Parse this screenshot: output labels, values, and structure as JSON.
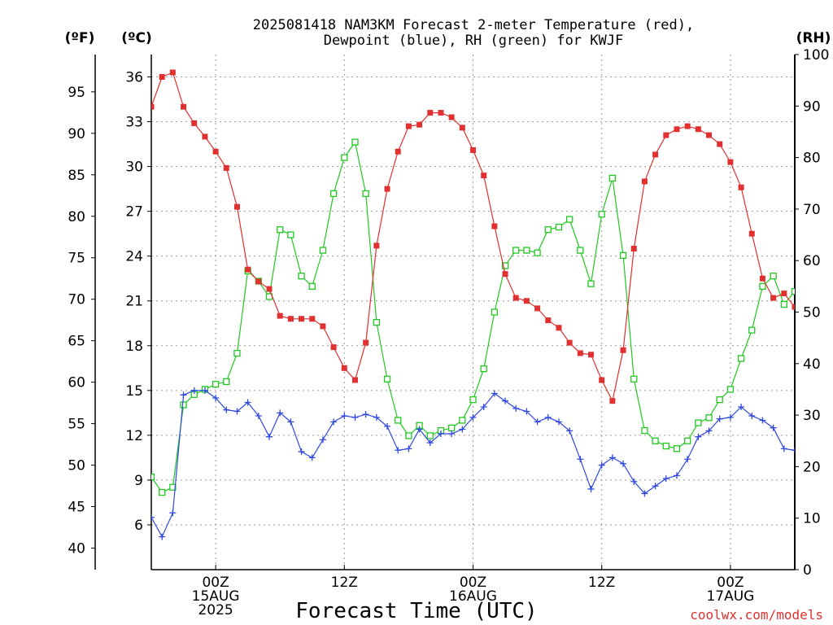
{
  "chart_data": {
    "type": "line",
    "title_line1": "2025081418 NAM3KM Forecast 2-meter Temperature (red),",
    "title_line2": "Dewpoint (blue), RH (green) for KWJF",
    "xlabel": "Forecast Time (UTC)",
    "credit": "coolwx.com/models",
    "unit_f": "(ºF)",
    "unit_c": "(ºC)",
    "unit_rh": "(RH)",
    "x_start_hour": 18,
    "x_end_hour": 78,
    "x_ticks": [
      {
        "hour": 24,
        "l1": "00Z",
        "l2": "15AUG",
        "l3": "2025"
      },
      {
        "hour": 36,
        "l1": "12Z",
        "l2": "",
        "l3": ""
      },
      {
        "hour": 48,
        "l1": "00Z",
        "l2": "16AUG",
        "l3": ""
      },
      {
        "hour": 60,
        "l1": "12Z",
        "l2": "",
        "l3": ""
      },
      {
        "hour": 72,
        "l1": "00Z",
        "l2": "17AUG",
        "l3": ""
      }
    ],
    "ylim_c": [
      3,
      37.5
    ],
    "yticks_c": [
      "6",
      "9",
      "12",
      "15",
      "18",
      "21",
      "24",
      "27",
      "30",
      "33",
      "36"
    ],
    "yticks_f": [
      "40",
      "45",
      "50",
      "55",
      "60",
      "65",
      "70",
      "75",
      "80",
      "85",
      "90",
      "95"
    ],
    "ylim_rh": [
      0,
      100
    ],
    "yticks_rh": [
      "0",
      "10",
      "20",
      "30",
      "40",
      "50",
      "60",
      "70",
      "80",
      "90",
      "100"
    ],
    "grid": true,
    "series": [
      {
        "key": "temperature",
        "color": "#e03030",
        "marker": "filled-square",
        "values": [
          34.0,
          36.0,
          36.3,
          34.0,
          32.9,
          32.0,
          31.0,
          29.9,
          27.3,
          23.1,
          22.3,
          21.8,
          20.0,
          19.8,
          19.8,
          19.8,
          19.3,
          17.9,
          16.5,
          15.7,
          18.2,
          24.7,
          28.5,
          31.0,
          32.7,
          32.8,
          33.6,
          33.6,
          33.3,
          32.6,
          31.1,
          29.4,
          26.0,
          22.8,
          21.2,
          21.0,
          20.5,
          19.7,
          19.2,
          18.2,
          17.5,
          17.4,
          15.7,
          14.3,
          17.7,
          24.5,
          29.0,
          30.8,
          32.1,
          32.5,
          32.7,
          32.5,
          32.1,
          31.5,
          30.3,
          28.6,
          25.5,
          22.5,
          21.2,
          21.5,
          20.6
        ]
      },
      {
        "key": "dewpoint",
        "color": "#3048e0",
        "marker": "plus",
        "values": [
          6.5,
          5.2,
          6.8,
          14.7,
          15.0,
          15.0,
          14.5,
          13.7,
          13.6,
          14.2,
          13.3,
          11.9,
          13.5,
          12.9,
          10.9,
          10.5,
          11.7,
          12.9,
          13.3,
          13.2,
          13.4,
          13.2,
          12.6,
          11.0,
          11.1,
          12.4,
          11.5,
          12.1,
          12.1,
          12.4,
          13.2,
          13.9,
          14.8,
          14.3,
          13.8,
          13.6,
          12.9,
          13.2,
          12.9,
          12.3,
          10.4,
          8.4,
          10.0,
          10.5,
          10.1,
          8.9,
          8.1,
          8.6,
          9.1,
          9.3,
          10.4,
          11.9,
          12.3,
          13.1,
          13.2,
          13.9,
          13.3,
          13.0,
          12.5,
          11.1,
          11.0
        ]
      },
      {
        "key": "rh",
        "color": "#20c820",
        "marker": "open-square",
        "values": [
          18,
          15,
          16,
          32,
          34,
          35,
          36,
          36.5,
          42,
          58,
          56,
          53,
          66,
          65,
          57,
          55,
          62,
          73,
          80,
          83,
          73,
          48,
          37,
          29,
          26,
          28,
          26,
          27,
          27.5,
          29,
          33,
          39,
          50,
          59,
          62,
          62,
          61.5,
          66,
          66.5,
          68,
          62,
          55.5,
          69,
          76,
          61,
          37,
          27,
          25,
          24,
          23.5,
          25,
          28.5,
          29.5,
          33,
          35,
          41,
          46.5,
          55,
          57,
          51.5,
          54
        ]
      }
    ]
  }
}
